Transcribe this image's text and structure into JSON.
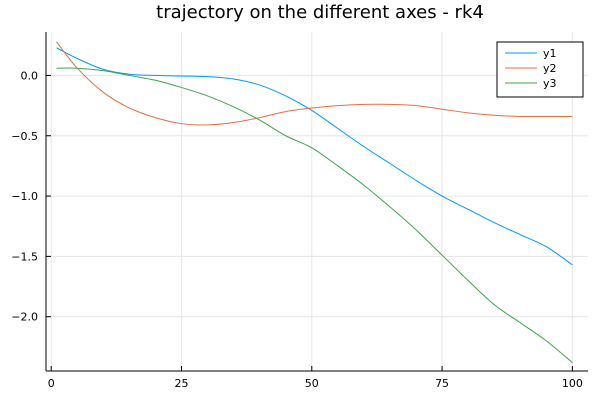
{
  "chart_data": {
    "type": "line",
    "title": "trajectory on the different axes - rk4",
    "xlabel": "",
    "ylabel": "",
    "xlim": [
      -1,
      103
    ],
    "ylim": [
      -2.45,
      0.36
    ],
    "xticks": [
      0,
      25,
      50,
      75,
      100
    ],
    "xtick_labels": [
      "0",
      "25",
      "50",
      "75",
      "100"
    ],
    "yticks": [
      0.0,
      -0.5,
      -1.0,
      -1.5,
      -2.0
    ],
    "ytick_labels": [
      "0.0",
      "−0.5",
      "−1.0",
      "−1.5",
      "−2.0"
    ],
    "grid": true,
    "legend_position": "top-right",
    "x": [
      1,
      5,
      10,
      15,
      20,
      25,
      30,
      35,
      40,
      45,
      50,
      55,
      60,
      65,
      70,
      75,
      80,
      85,
      90,
      95,
      100
    ],
    "series": [
      {
        "name": "y1",
        "color": "#009AFA",
        "values": [
          0.23,
          0.14,
          0.05,
          0.01,
          0.0,
          -0.005,
          -0.01,
          -0.03,
          -0.08,
          -0.17,
          -0.29,
          -0.44,
          -0.59,
          -0.73,
          -0.87,
          -1.0,
          -1.11,
          -1.22,
          -1.32,
          -1.42,
          -1.57
        ]
      },
      {
        "name": "y2",
        "color": "#E36F47",
        "values": [
          0.28,
          0.06,
          -0.14,
          -0.27,
          -0.35,
          -0.4,
          -0.41,
          -0.39,
          -0.35,
          -0.3,
          -0.27,
          -0.25,
          -0.24,
          -0.24,
          -0.25,
          -0.28,
          -0.31,
          -0.33,
          -0.34,
          -0.34,
          -0.34
        ]
      },
      {
        "name": "y3",
        "color": "#3EA44E",
        "values": [
          0.06,
          0.06,
          0.04,
          0.0,
          -0.04,
          -0.1,
          -0.17,
          -0.26,
          -0.37,
          -0.5,
          -0.6,
          -0.75,
          -0.91,
          -1.09,
          -1.28,
          -1.49,
          -1.7,
          -1.9,
          -2.05,
          -2.2,
          -2.38
        ]
      }
    ]
  }
}
